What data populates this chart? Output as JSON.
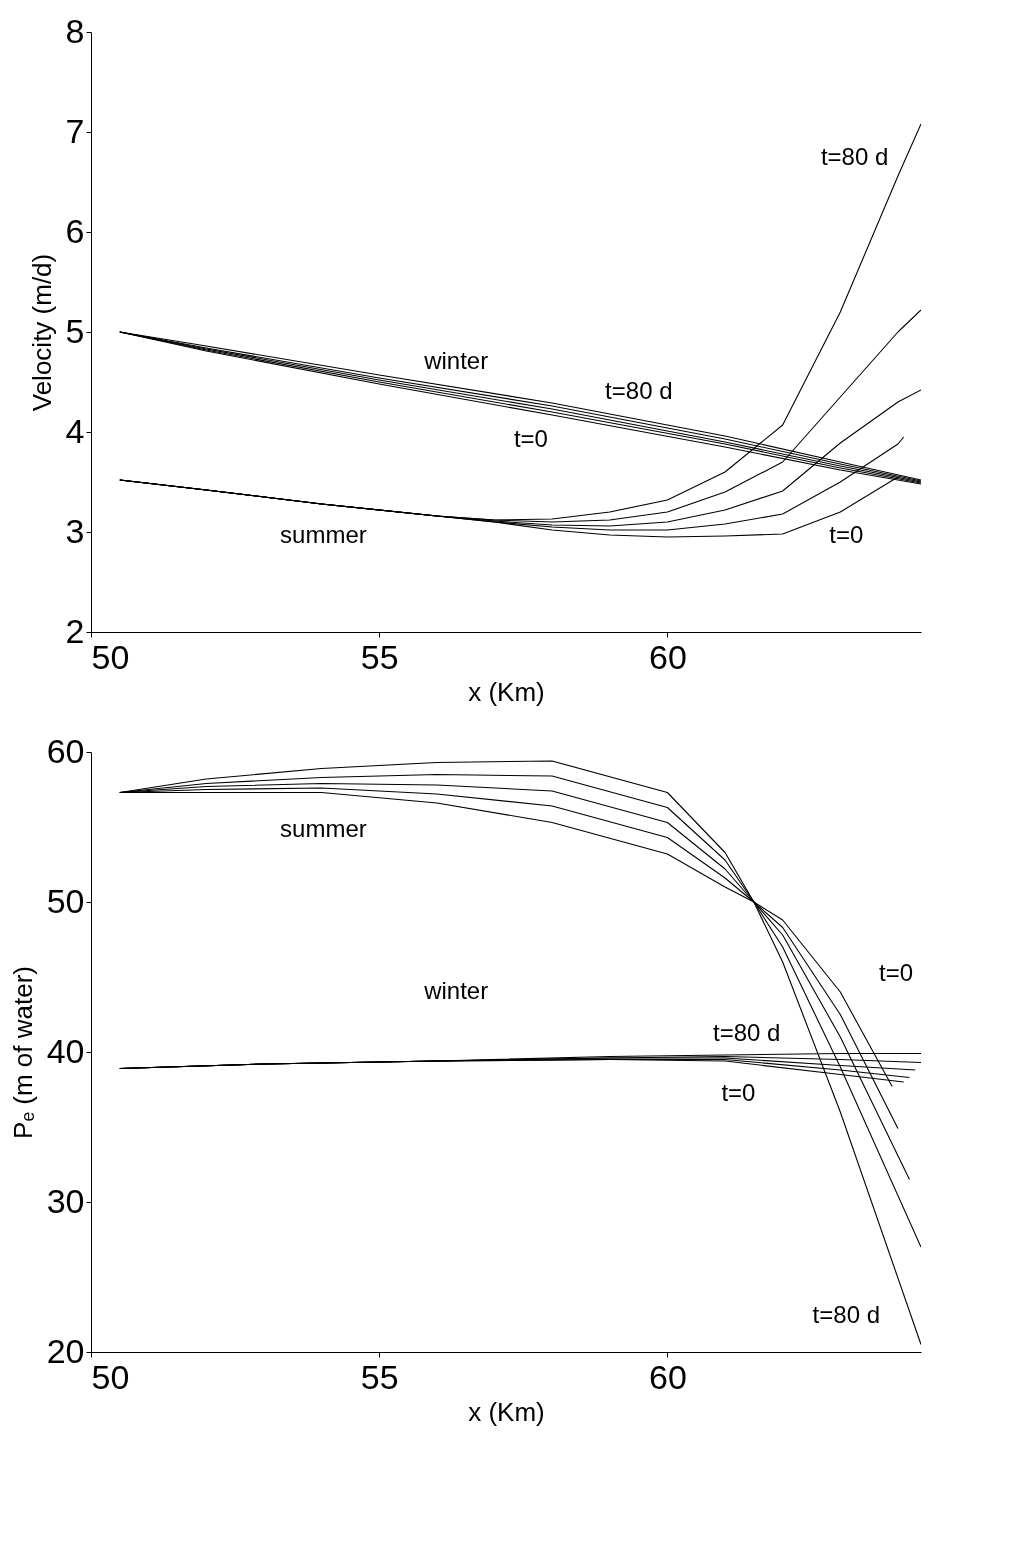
{
  "chart_data": [
    {
      "type": "line",
      "xlabel": "x (Km)",
      "ylabel": "Velocity (m/d)",
      "xlim": [
        50,
        64.4
      ],
      "ylim": [
        2,
        8
      ],
      "xticks": [
        50,
        55,
        60
      ],
      "yticks": [
        2,
        3,
        4,
        5,
        6,
        7,
        8
      ],
      "grid": false,
      "legend": false,
      "marker": "none",
      "line_style": "solid",
      "series": [
        {
          "color": "#000000",
          "x": [
            50.5,
            52,
            55,
            58,
            61,
            63,
            64.4
          ],
          "values": [
            5.0,
            4.86,
            4.57,
            4.29,
            3.96,
            3.7,
            3.52
          ]
        },
        {
          "color": "#000000",
          "x": [
            50.5,
            52,
            55,
            58,
            61,
            63,
            64.4
          ],
          "values": [
            5.0,
            4.84,
            4.54,
            4.26,
            3.93,
            3.68,
            3.51
          ]
        },
        {
          "color": "#000000",
          "x": [
            50.5,
            52,
            55,
            58,
            61,
            63,
            64.4
          ],
          "values": [
            5.0,
            4.83,
            4.52,
            4.23,
            3.9,
            3.66,
            3.5
          ]
        },
        {
          "color": "#000000",
          "x": [
            50.5,
            52,
            55,
            58,
            61,
            63,
            64.4
          ],
          "values": [
            5.0,
            4.82,
            4.5,
            4.2,
            3.88,
            3.64,
            3.49
          ]
        },
        {
          "color": "#000000",
          "x": [
            50.5,
            52,
            55,
            58,
            61,
            63,
            64.4
          ],
          "values": [
            5.0,
            4.81,
            4.48,
            4.17,
            3.85,
            3.62,
            3.48
          ]
        },
        {
          "color": "#000000",
          "x": [
            50.5,
            52,
            54,
            56,
            57,
            58,
            59,
            60,
            61,
            62,
            63,
            64,
            64.4
          ],
          "values": [
            3.52,
            3.42,
            3.28,
            3.16,
            3.12,
            3.13,
            3.2,
            3.32,
            3.6,
            4.07,
            5.2,
            6.56,
            7.08
          ]
        },
        {
          "color": "#000000",
          "x": [
            50.5,
            52,
            54,
            56,
            57,
            58,
            59,
            60,
            61,
            62,
            63,
            64,
            64.4
          ],
          "values": [
            3.52,
            3.42,
            3.28,
            3.16,
            3.12,
            3.1,
            3.12,
            3.2,
            3.4,
            3.7,
            4.35,
            5.0,
            5.22
          ]
        },
        {
          "color": "#000000",
          "x": [
            50.5,
            52,
            54,
            56,
            57,
            58,
            59,
            60,
            61,
            62,
            63,
            64,
            64.4
          ],
          "values": [
            3.52,
            3.42,
            3.28,
            3.16,
            3.11,
            3.07,
            3.06,
            3.1,
            3.22,
            3.41,
            3.89,
            4.3,
            4.42
          ]
        },
        {
          "color": "#000000",
          "x": [
            50.5,
            52,
            54,
            56,
            57,
            58,
            59,
            60,
            61,
            62,
            63,
            64,
            64.1
          ],
          "values": [
            3.52,
            3.42,
            3.28,
            3.16,
            3.1,
            3.05,
            3.02,
            3.02,
            3.08,
            3.18,
            3.5,
            3.88,
            3.95
          ]
        },
        {
          "color": "#000000",
          "x": [
            50.5,
            52,
            54,
            56,
            57,
            58,
            59,
            60,
            61,
            62,
            63,
            64
          ],
          "values": [
            3.52,
            3.42,
            3.28,
            3.16,
            3.1,
            3.02,
            2.97,
            2.95,
            2.96,
            2.98,
            3.2,
            3.55
          ]
        }
      ],
      "annotations": [
        "t=80 d",
        "winter",
        "t=80 d",
        "t=0",
        "summer",
        "t=0"
      ]
    },
    {
      "type": "line",
      "xlabel": "x (Km)",
      "ylabel": "Pₑ (m of water)",
      "xlim": [
        50,
        64.4
      ],
      "ylim": [
        20,
        60
      ],
      "xticks": [
        50,
        55,
        60
      ],
      "yticks": [
        20,
        30,
        40,
        50,
        60
      ],
      "grid": false,
      "legend": false,
      "marker": "none",
      "line_style": "solid",
      "series": [
        {
          "color": "#000000",
          "x": [
            50.5,
            52,
            54,
            56,
            58,
            60,
            61,
            61.5,
            62,
            63,
            64.4
          ],
          "values": [
            57.3,
            58.2,
            58.9,
            59.3,
            59.4,
            57.3,
            53.3,
            50,
            46,
            36,
            20.5
          ]
        },
        {
          "color": "#000000",
          "x": [
            50.5,
            52,
            54,
            56,
            58,
            60,
            61,
            61.5,
            62,
            63,
            64.4
          ],
          "values": [
            57.3,
            57.9,
            58.3,
            58.5,
            58.4,
            56.3,
            52.8,
            50,
            47,
            39,
            27
          ]
        },
        {
          "color": "#000000",
          "x": [
            50.5,
            52,
            54,
            56,
            58,
            60,
            61,
            61.5,
            62,
            63,
            64.2
          ],
          "values": [
            57.3,
            57.7,
            57.9,
            57.8,
            57.4,
            55.3,
            52.2,
            50,
            47.8,
            41,
            31.5
          ]
        },
        {
          "color": "#000000",
          "x": [
            50.5,
            52,
            54,
            56,
            58,
            60,
            61,
            61.5,
            62,
            63,
            64
          ],
          "values": [
            57.3,
            57.5,
            57.6,
            57.2,
            56.4,
            54.3,
            51.6,
            50,
            48.3,
            42.5,
            34.9
          ]
        },
        {
          "color": "#000000",
          "x": [
            50.5,
            52,
            54,
            56,
            58,
            60,
            61,
            61.5,
            62,
            63,
            63.9
          ],
          "values": [
            57.3,
            57.3,
            57.3,
            56.6,
            55.3,
            53.2,
            51,
            50,
            48.8,
            44,
            37.7
          ]
        },
        {
          "color": "#000000",
          "x": [
            50.5,
            53,
            56,
            59,
            61,
            63,
            64.4
          ],
          "values": [
            38.9,
            39.2,
            39.4,
            39.7,
            39.8,
            39.9,
            39.9
          ]
        },
        {
          "color": "#000000",
          "x": [
            50.5,
            53,
            56,
            59,
            61,
            63,
            64.4
          ],
          "values": [
            38.9,
            39.2,
            39.4,
            39.6,
            39.7,
            39.5,
            39.3
          ]
        },
        {
          "color": "#000000",
          "x": [
            50.5,
            53,
            56,
            59,
            61,
            63,
            64.3
          ],
          "values": [
            38.9,
            39.2,
            39.4,
            39.6,
            39.6,
            39.1,
            38.8
          ]
        },
        {
          "color": "#000000",
          "x": [
            50.5,
            53,
            56,
            59,
            61,
            63,
            64.2
          ],
          "values": [
            38.9,
            39.2,
            39.4,
            39.5,
            39.5,
            38.8,
            38.3
          ]
        },
        {
          "color": "#000000",
          "x": [
            50.5,
            53,
            56,
            59,
            61,
            63,
            64.1
          ],
          "values": [
            38.9,
            39.2,
            39.4,
            39.5,
            39.4,
            38.5,
            38.0
          ]
        }
      ],
      "annotations": [
        "summer",
        "winter",
        "t=80 d",
        "t=0",
        "t=0",
        "t=80 d"
      ]
    }
  ]
}
